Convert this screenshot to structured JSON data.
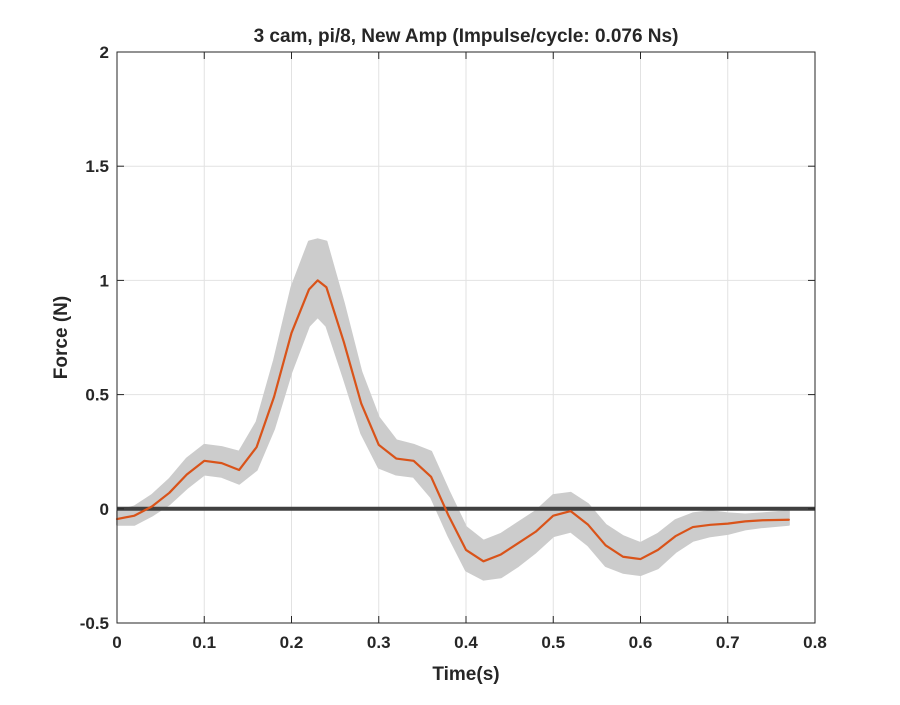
{
  "chart_data": {
    "type": "line",
    "title": "3 cam, pi/8, New Amp (Impulse/cycle: 0.076 Ns)",
    "xlabel": "Time(s)",
    "ylabel": "Force (N)",
    "xlim": [
      0,
      0.8
    ],
    "ylim": [
      -0.5,
      2
    ],
    "xticks": [
      0,
      0.1,
      0.2,
      0.3,
      0.4,
      0.5,
      0.6,
      0.7,
      0.8
    ],
    "yticks": [
      -0.5,
      0,
      0.5,
      1,
      1.5,
      2
    ],
    "xtick_labels": [
      "0",
      "0.1",
      "0.2",
      "0.3",
      "0.4",
      "0.5",
      "0.6",
      "0.7",
      "0.8"
    ],
    "ytick_labels": [
      "-0.5",
      "0",
      "0.5",
      "1",
      "1.5",
      "2"
    ],
    "grid": true,
    "zero_line": {
      "y": 0,
      "color": "#404040"
    },
    "series": [
      {
        "color": "#d95319",
        "x": [
          0,
          0.02,
          0.04,
          0.06,
          0.08,
          0.1,
          0.12,
          0.14,
          0.16,
          0.18,
          0.2,
          0.22,
          0.23,
          0.24,
          0.26,
          0.28,
          0.3,
          0.32,
          0.34,
          0.36,
          0.38,
          0.4,
          0.42,
          0.44,
          0.46,
          0.48,
          0.5,
          0.52,
          0.54,
          0.56,
          0.58,
          0.6,
          0.62,
          0.64,
          0.66,
          0.68,
          0.7,
          0.72,
          0.74,
          0.77
        ],
        "y": [
          -0.045,
          -0.03,
          0.01,
          0.07,
          0.15,
          0.21,
          0.2,
          0.17,
          0.27,
          0.49,
          0.77,
          0.96,
          1.0,
          0.97,
          0.73,
          0.46,
          0.28,
          0.22,
          0.21,
          0.14,
          -0.03,
          -0.18,
          -0.23,
          -0.2,
          -0.15,
          -0.1,
          -0.03,
          -0.01,
          -0.07,
          -0.16,
          -0.21,
          -0.22,
          -0.18,
          -0.12,
          -0.08,
          -0.07,
          -0.065,
          -0.055,
          -0.05,
          -0.048
        ]
      }
    ],
    "band": {
      "color": "#cccccc",
      "x": [
        0,
        0.02,
        0.04,
        0.06,
        0.08,
        0.1,
        0.12,
        0.14,
        0.16,
        0.18,
        0.2,
        0.22,
        0.23,
        0.24,
        0.26,
        0.28,
        0.3,
        0.32,
        0.34,
        0.36,
        0.38,
        0.4,
        0.42,
        0.44,
        0.46,
        0.48,
        0.5,
        0.52,
        0.54,
        0.56,
        0.58,
        0.6,
        0.62,
        0.64,
        0.66,
        0.68,
        0.7,
        0.72,
        0.74,
        0.77
      ],
      "upper": [
        -0.01,
        0.01,
        0.06,
        0.13,
        0.22,
        0.28,
        0.27,
        0.25,
        0.38,
        0.65,
        0.97,
        1.17,
        1.18,
        1.17,
        0.9,
        0.6,
        0.4,
        0.3,
        0.28,
        0.25,
        0.08,
        -0.08,
        -0.14,
        -0.11,
        -0.06,
        -0.01,
        0.06,
        0.07,
        0.02,
        -0.07,
        -0.12,
        -0.15,
        -0.11,
        -0.05,
        -0.02,
        -0.01,
        -0.02,
        -0.025,
        -0.02,
        -0.01
      ],
      "lower": [
        -0.07,
        -0.07,
        -0.03,
        0.02,
        0.09,
        0.15,
        0.14,
        0.11,
        0.17,
        0.35,
        0.6,
        0.8,
        0.84,
        0.8,
        0.57,
        0.33,
        0.18,
        0.15,
        0.14,
        0.05,
        -0.12,
        -0.27,
        -0.31,
        -0.3,
        -0.25,
        -0.19,
        -0.12,
        -0.1,
        -0.16,
        -0.25,
        -0.28,
        -0.29,
        -0.26,
        -0.19,
        -0.14,
        -0.12,
        -0.11,
        -0.09,
        -0.08,
        -0.07
      ]
    }
  }
}
